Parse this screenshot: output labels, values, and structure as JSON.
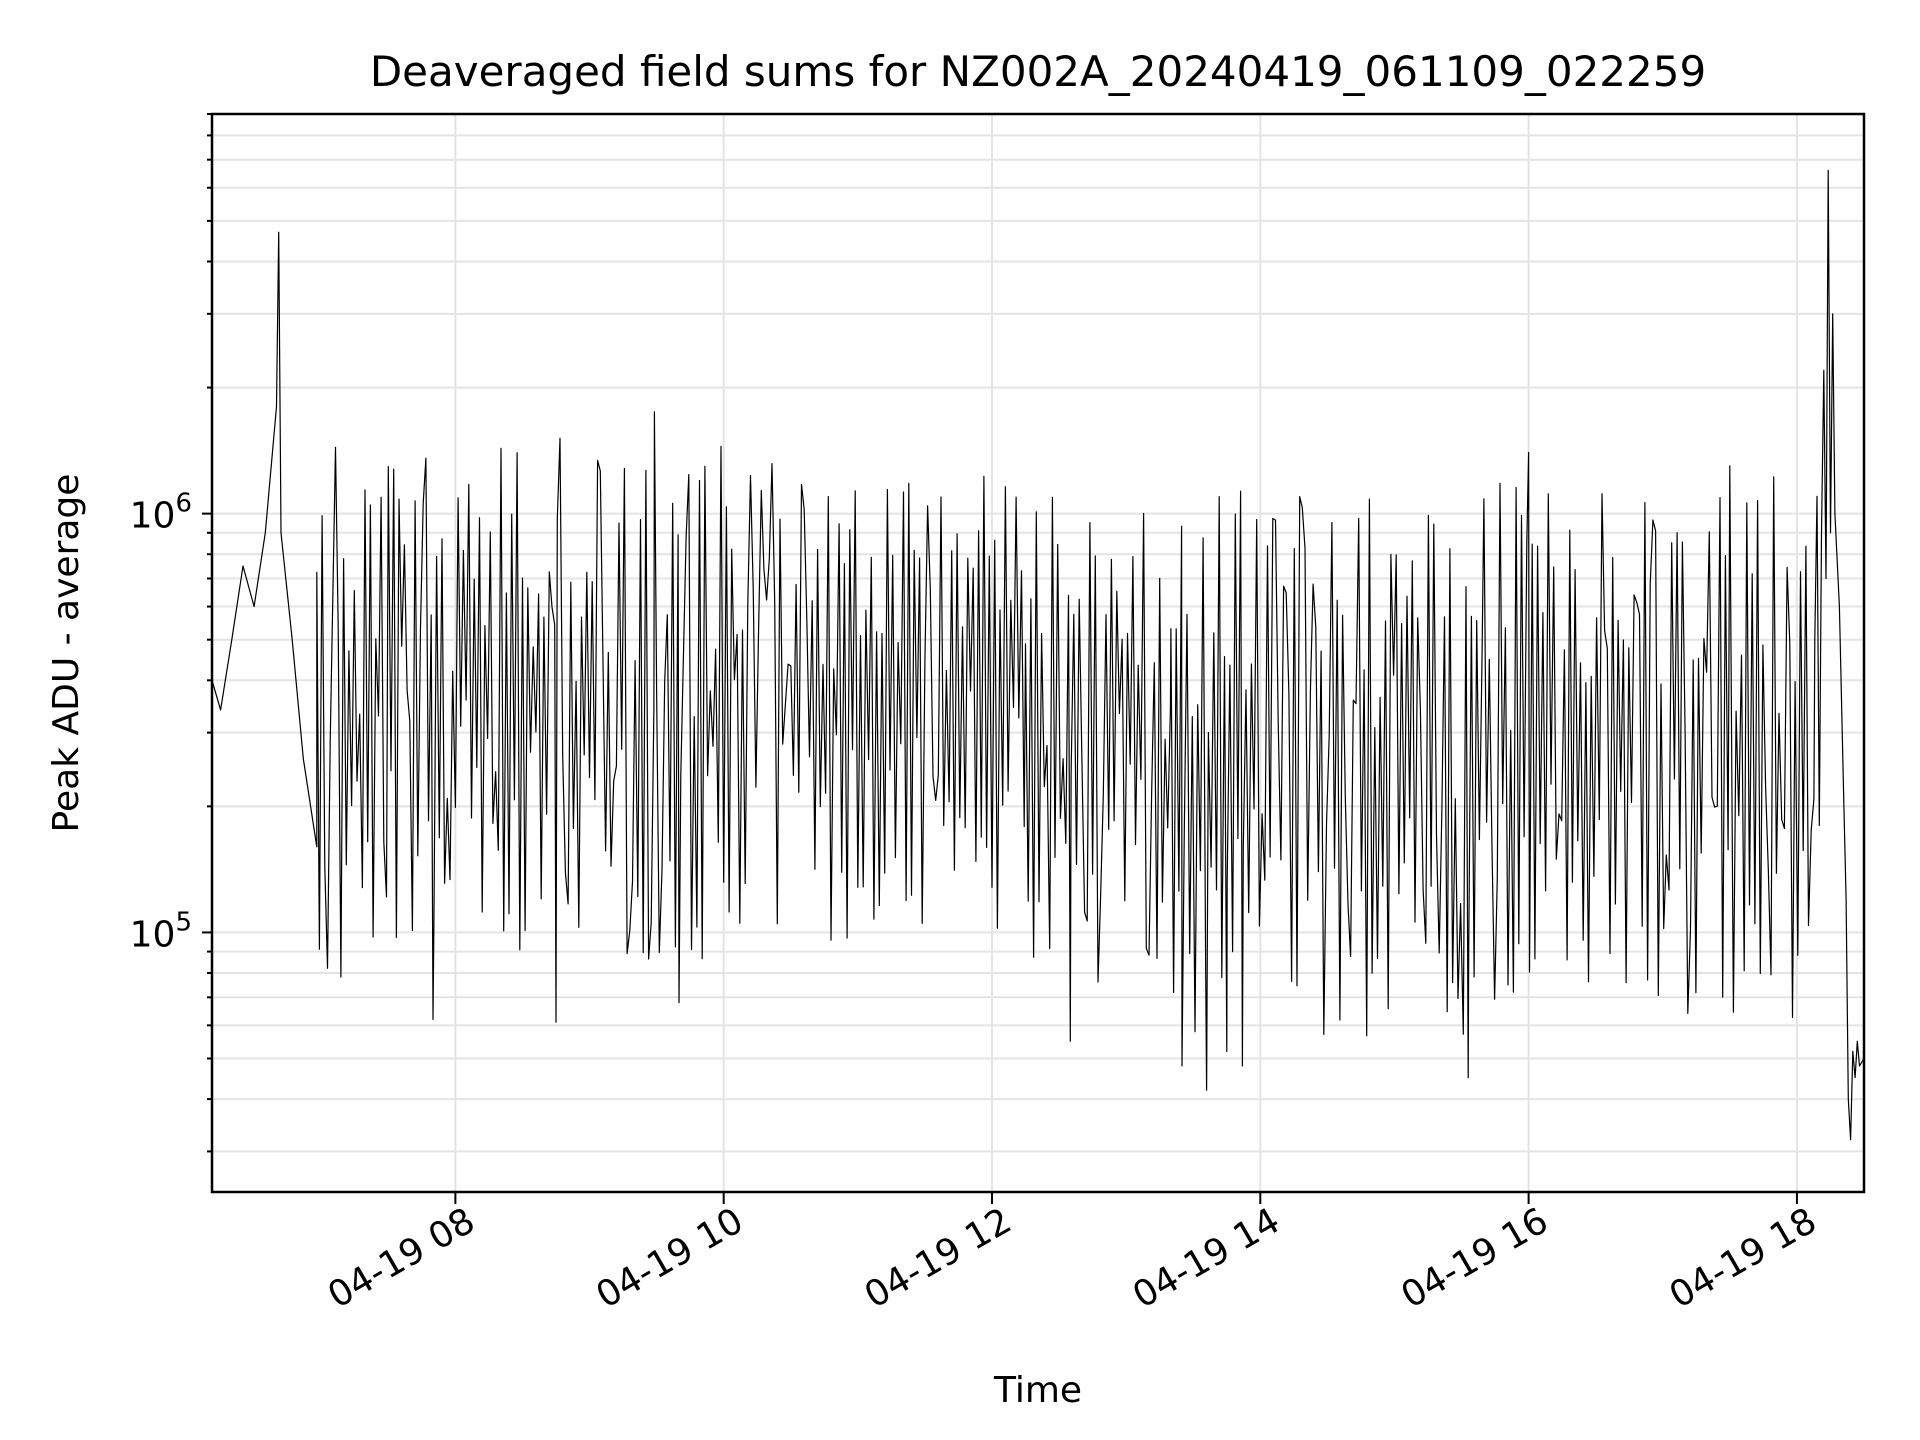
{
  "chart_data": {
    "type": "line",
    "title": "Deaveraged field sums for NZ002A_20240419_061109_022259",
    "xlabel": "Time",
    "ylabel": "Peak ADU - average",
    "x_is_time": true,
    "xlim": [
      "2024-04-19T06:11:09",
      "2024-04-19T18:30:00"
    ],
    "ylim": [
      24000,
      9000000
    ],
    "yscale": "log",
    "grid": true,
    "x_ticks": [
      {
        "value": "2024-04-19T08:00:00",
        "label": "04-19 08"
      },
      {
        "value": "2024-04-19T10:00:00",
        "label": "04-19 10"
      },
      {
        "value": "2024-04-19T12:00:00",
        "label": "04-19 12"
      },
      {
        "value": "2024-04-19T14:00:00",
        "label": "04-19 14"
      },
      {
        "value": "2024-04-19T16:00:00",
        "label": "04-19 16"
      },
      {
        "value": "2024-04-19T18:00:00",
        "label": "04-19 18"
      }
    ],
    "y_ticks": [
      {
        "value": 100000,
        "base": "10",
        "exp": "5"
      },
      {
        "value": 1000000,
        "base": "10",
        "exp": "6"
      }
    ],
    "series": [
      {
        "color": "#000000",
        "points": [
          [
            "2024-04-19T06:11:09",
            400000
          ],
          [
            "2024-04-19T06:15:00",
            340000
          ],
          [
            "2024-04-19T06:20:00",
            500000
          ],
          [
            "2024-04-19T06:25:00",
            750000
          ],
          [
            "2024-04-19T06:30:00",
            600000
          ],
          [
            "2024-04-19T06:35:00",
            900000
          ],
          [
            "2024-04-19T06:40:00",
            1800000
          ],
          [
            "2024-04-19T06:41:00",
            4700000
          ],
          [
            "2024-04-19T06:42:00",
            900000
          ],
          [
            "2024-04-19T06:47:00",
            500000
          ],
          [
            "2024-04-19T06:52:00",
            260000
          ],
          [
            "2024-04-19T06:58:00",
            160000
          ]
        ],
        "envelopes": [
          {
            "start": "2024-04-19T06:58:00",
            "end": "2024-04-19T07:30:00",
            "low": 75000,
            "high": 1500000,
            "step_min": 1.2
          },
          {
            "start": "2024-04-19T07:30:00",
            "end": "2024-04-19T08:30:00",
            "low": 85000,
            "high": 1450000,
            "step_min": 1.2
          },
          {
            "start": "2024-04-19T08:30:00",
            "end": "2024-04-19T10:30:00",
            "low": 85000,
            "high": 1550000,
            "step_min": 1.2
          },
          {
            "start": "2024-04-19T10:30:00",
            "end": "2024-04-19T12:15:00",
            "low": 95000,
            "high": 1300000,
            "step_min": 1.2
          },
          {
            "start": "2024-04-19T12:15:00",
            "end": "2024-04-19T13:20:00",
            "low": 75000,
            "high": 1200000,
            "step_min": 1.2
          },
          {
            "start": "2024-04-19T13:20:00",
            "end": "2024-04-19T15:40:00",
            "low": 55000,
            "high": 1150000,
            "step_min": 1.2
          },
          {
            "start": "2024-04-19T15:40:00",
            "end": "2024-04-19T18:08:00",
            "low": 62000,
            "high": 1250000,
            "step_min": 1.2
          }
        ],
        "spikes": [
          [
            "2024-04-19T07:50:00",
            62000
          ],
          [
            "2024-04-19T08:45:00",
            61000
          ],
          [
            "2024-04-19T09:29:00",
            1750000
          ],
          [
            "2024-04-19T09:40:00",
            68000
          ],
          [
            "2024-04-19T12:35:00",
            55000
          ],
          [
            "2024-04-19T13:25:00",
            48000
          ],
          [
            "2024-04-19T13:36:00",
            42000
          ],
          [
            "2024-04-19T13:45:00",
            52000
          ],
          [
            "2024-04-19T13:52:00",
            48000
          ],
          [
            "2024-04-19T15:33:00",
            45000
          ],
          [
            "2024-04-19T16:00:00",
            1400000
          ],
          [
            "2024-04-19T17:30:00",
            1300000
          ]
        ],
        "tail": [
          [
            "2024-04-19T18:08:00",
            500000
          ],
          [
            "2024-04-19T18:09:00",
            1100000
          ],
          [
            "2024-04-19T18:10:00",
            180000
          ],
          [
            "2024-04-19T18:11:00",
            900000
          ],
          [
            "2024-04-19T18:12:00",
            2200000
          ],
          [
            "2024-04-19T18:13:00",
            700000
          ],
          [
            "2024-04-19T18:14:00",
            6600000
          ],
          [
            "2024-04-19T18:15:00",
            900000
          ],
          [
            "2024-04-19T18:16:00",
            3000000
          ],
          [
            "2024-04-19T18:17:00",
            1000000
          ],
          [
            "2024-04-19T18:19:00",
            600000
          ],
          [
            "2024-04-19T18:21:00",
            200000
          ],
          [
            "2024-04-19T18:22:00",
            120000
          ],
          [
            "2024-04-19T18:23:00",
            40000
          ],
          [
            "2024-04-19T18:24:00",
            32000
          ],
          [
            "2024-04-19T18:25:00",
            52000
          ],
          [
            "2024-04-19T18:26:00",
            45000
          ],
          [
            "2024-04-19T18:27:00",
            55000
          ],
          [
            "2024-04-19T18:28:00",
            48000
          ],
          [
            "2024-04-19T18:30:00",
            50000
          ]
        ]
      }
    ]
  }
}
